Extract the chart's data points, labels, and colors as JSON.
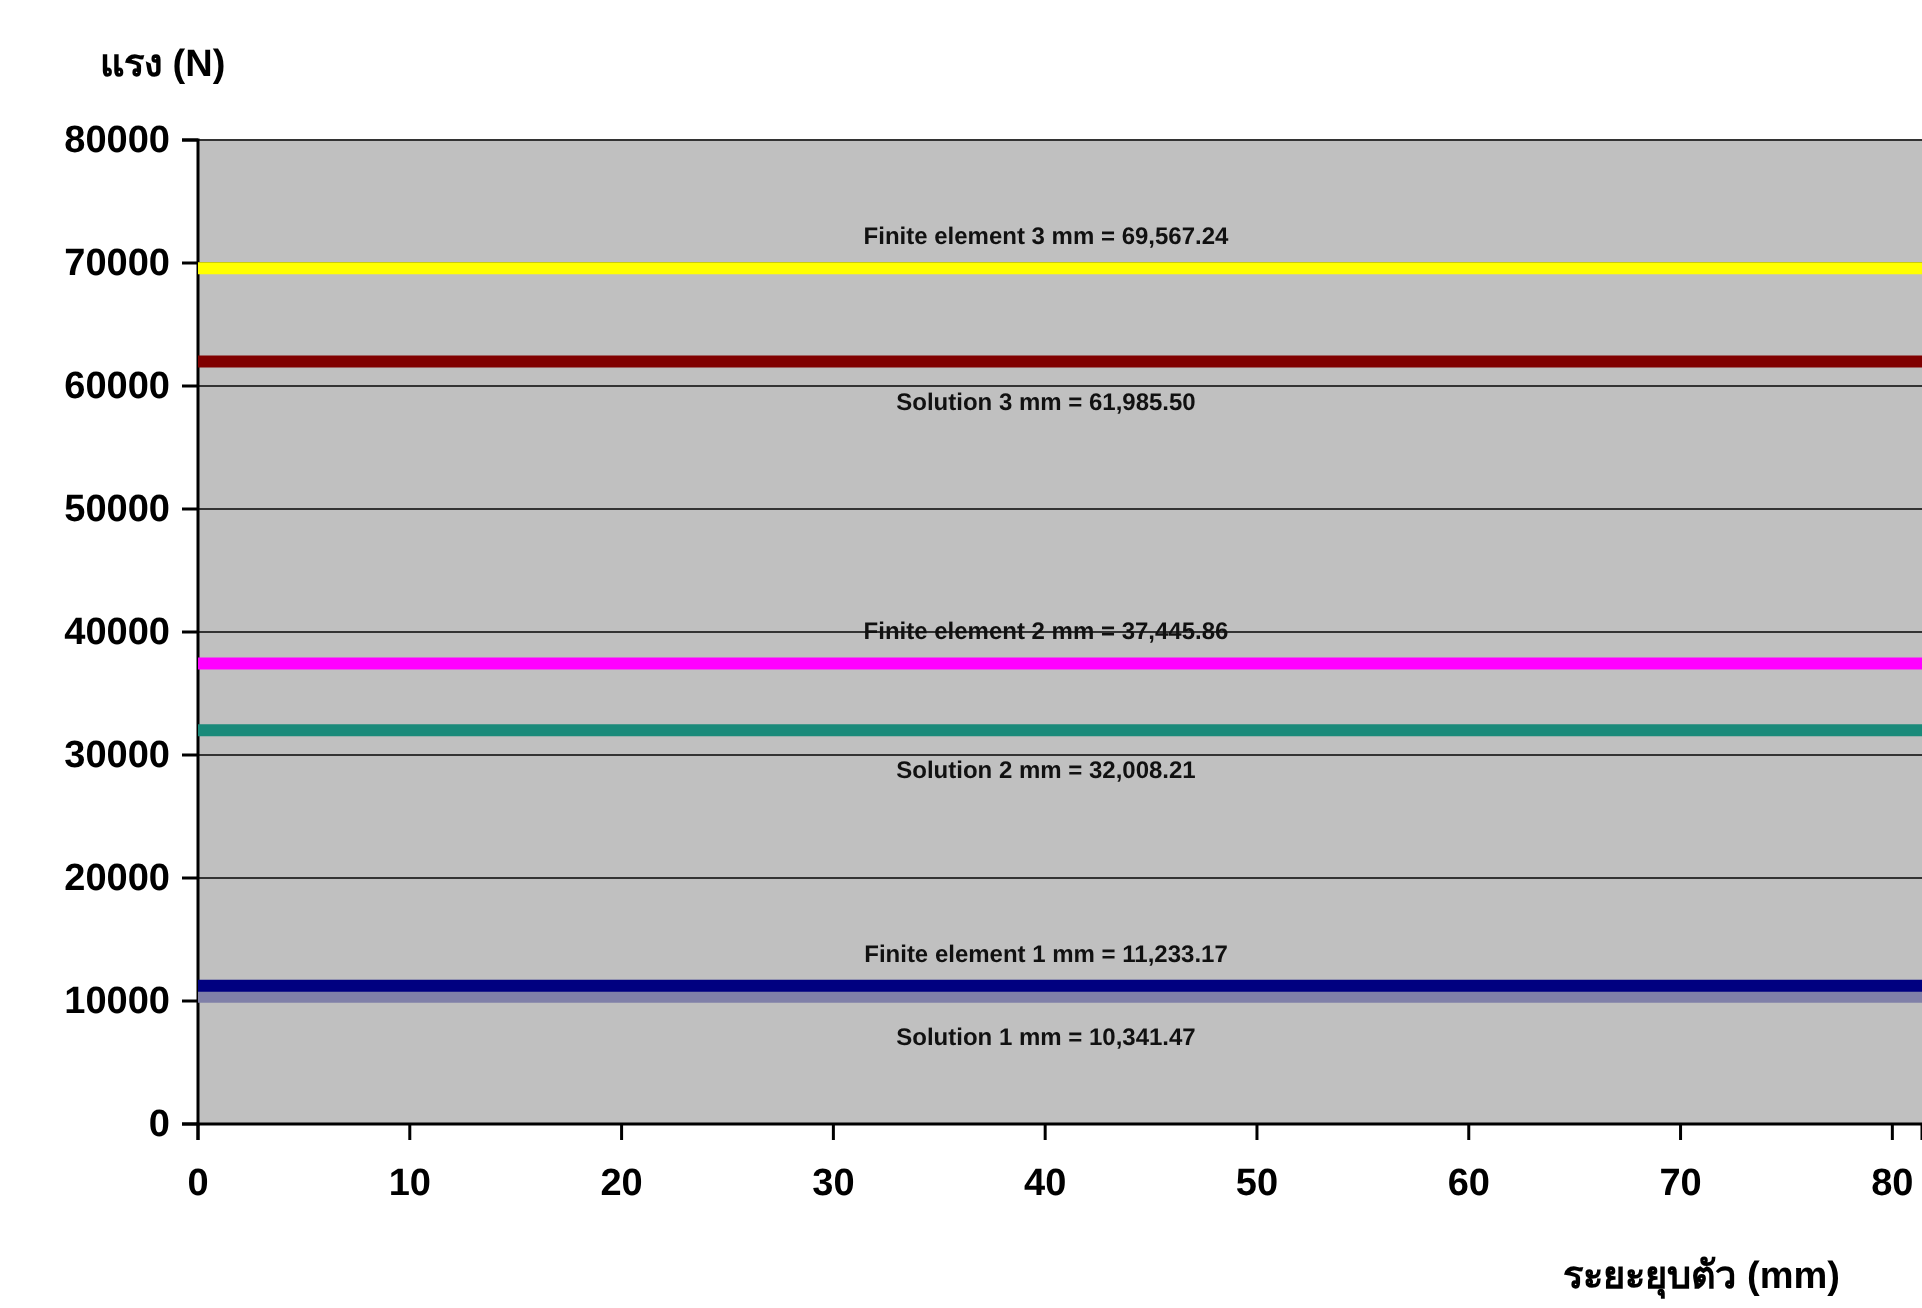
{
  "chart_data": {
    "type": "line",
    "xlabel": "ระยะยุบตัว (mm)",
    "ylabel": "แรง (N)",
    "xlim": [
      0,
      81.4
    ],
    "ylim": [
      0,
      80000
    ],
    "xticks": [
      0,
      10,
      20,
      30,
      40,
      50,
      60,
      70,
      80
    ],
    "yticks": [
      0,
      10000,
      20000,
      30000,
      40000,
      50000,
      60000,
      70000,
      80000
    ],
    "grid": "y",
    "marker": "none",
    "line_style": "solid",
    "x": [
      0,
      81.4
    ],
    "series": [
      {
        "color": "#ffff00",
        "values": [
          69567.24,
          69567.24
        ]
      },
      {
        "color": "#800000",
        "values": [
          61985.5,
          61985.5
        ]
      },
      {
        "color": "#ff00ff",
        "values": [
          37445.86,
          37445.86
        ]
      },
      {
        "color": "#1a8a7a",
        "values": [
          32008.21,
          32008.21
        ]
      },
      {
        "color": "#8080a8",
        "values": [
          10341.47,
          10341.47
        ]
      },
      {
        "color": "#000080",
        "values": [
          11233.17,
          11233.17
        ]
      }
    ],
    "annotations": [
      {
        "text": "Finite element 3 mm =  69,567.24",
        "y": 69567.24
      },
      {
        "text": "Solution 3 mm = 61,985.50",
        "y": 61985.5
      },
      {
        "text": "Finite element 2 mm = 37,445.86",
        "y": 37445.86
      },
      {
        "text": "Solution 2 mm = 32,008.21",
        "y": 32008.21
      },
      {
        "text": "Finite element 1 mm = 11,233.17",
        "y": 11233.17
      },
      {
        "text": "Solution 1 mm = 10,341.47",
        "y": 10341.47
      }
    ]
  }
}
